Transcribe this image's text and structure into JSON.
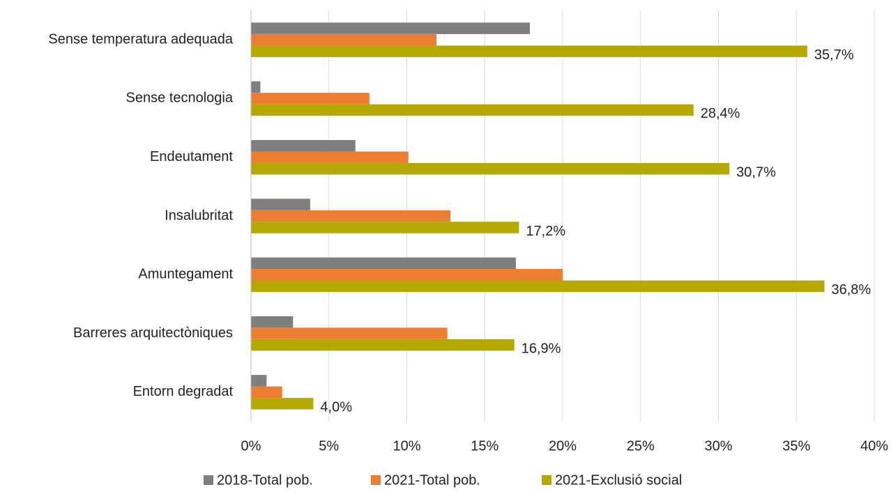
{
  "chart_data": {
    "type": "bar",
    "orientation": "horizontal",
    "categories": [
      "Sense temperatura adequada",
      "Sense tecnologia",
      "Endeutament",
      "Insalubritat",
      "Amuntegament",
      "Barreres arquitectòniques",
      "Entorn degradat"
    ],
    "series": [
      {
        "name": "2018-Total pob.",
        "color": "#7f7f7f",
        "values": [
          17.9,
          0.6,
          6.7,
          3.8,
          17.0,
          2.7,
          1.0
        ]
      },
      {
        "name": "2021-Total pob.",
        "color": "#ed7d31",
        "values": [
          11.9,
          7.6,
          10.1,
          12.8,
          20.0,
          12.6,
          2.0
        ]
      },
      {
        "name": "2021-Exclusió social",
        "color": "#b5a800",
        "values": [
          35.7,
          28.4,
          30.7,
          17.2,
          36.8,
          16.9,
          4.0
        ],
        "value_labels": [
          "35,7%",
          "28,4%",
          "30,7%",
          "17,2%",
          "36,8%",
          "16,9%",
          "4,0%"
        ]
      }
    ],
    "xlim": [
      0,
      40
    ],
    "xticks": [
      {
        "value": 0,
        "label": "0%"
      },
      {
        "value": 5,
        "label": "5%"
      },
      {
        "value": 10,
        "label": "10%"
      },
      {
        "value": 15,
        "label": "15%"
      },
      {
        "value": 20,
        "label": "20%"
      },
      {
        "value": 25,
        "label": "25%"
      },
      {
        "value": 30,
        "label": "30%"
      },
      {
        "value": 35,
        "label": "35%"
      },
      {
        "value": 40,
        "label": "40%"
      }
    ],
    "grid": true,
    "legend": "bottom"
  }
}
